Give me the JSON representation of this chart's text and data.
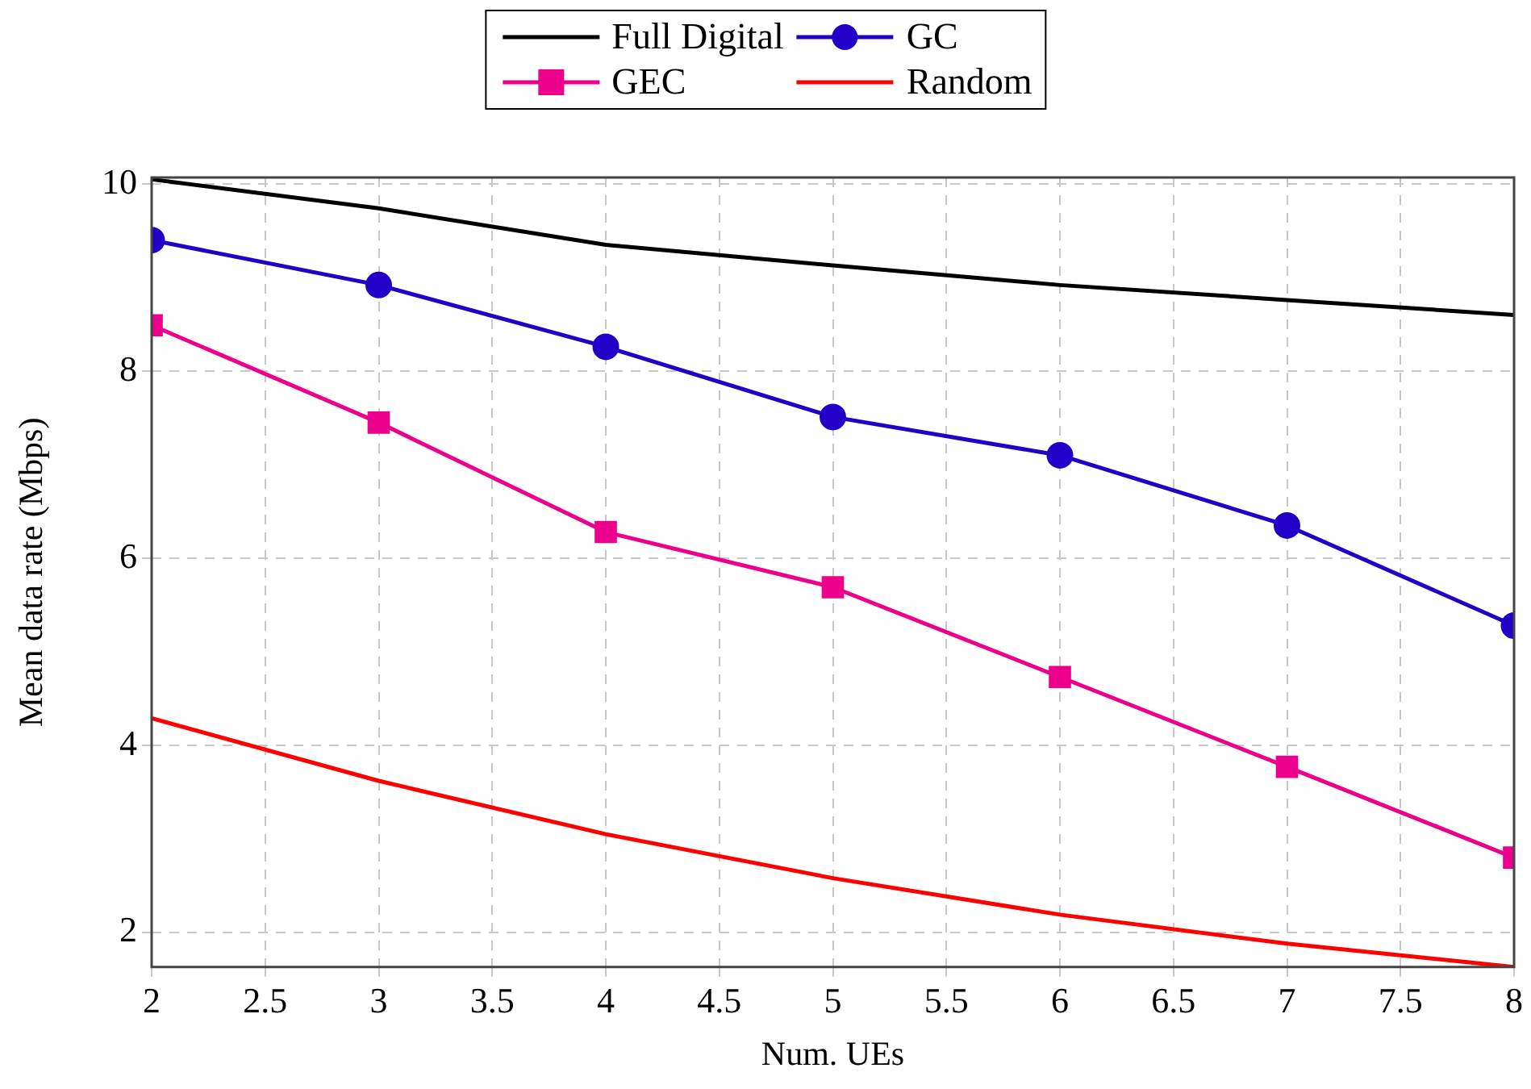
{
  "chart_data": {
    "type": "line",
    "xlabel": "Num. UEs",
    "ylabel": "Mean data rate (Mbps)",
    "x": [
      2,
      3,
      4,
      5,
      6,
      7,
      8
    ],
    "series": [
      {
        "name": "Full Digital",
        "color": "#000000",
        "marker": "none",
        "values": [
          10.05,
          9.74,
          9.35,
          9.13,
          8.92,
          8.76,
          8.6
        ]
      },
      {
        "name": "GC",
        "color": "#2200c8",
        "marker": "circle",
        "values": [
          9.4,
          8.92,
          8.26,
          7.51,
          7.1,
          6.35,
          5.28
        ]
      },
      {
        "name": "GEC",
        "color": "#ec008c",
        "marker": "square",
        "values": [
          8.49,
          7.45,
          6.28,
          5.69,
          4.73,
          3.77,
          2.8
        ]
      },
      {
        "name": "Random",
        "color": "#ff0000",
        "marker": "none",
        "values": [
          4.29,
          3.62,
          3.05,
          2.58,
          2.19,
          1.88,
          1.63
        ]
      }
    ],
    "xlim": [
      2,
      8
    ],
    "xticks": [
      2,
      2.5,
      3,
      3.5,
      4,
      4.5,
      5,
      5.5,
      6,
      6.5,
      7,
      7.5,
      8
    ],
    "ylim": [
      1.63,
      10.07
    ],
    "yticks": [
      2,
      4,
      6,
      8,
      10
    ],
    "grid": true,
    "legend": "top",
    "line_style": "solid"
  }
}
